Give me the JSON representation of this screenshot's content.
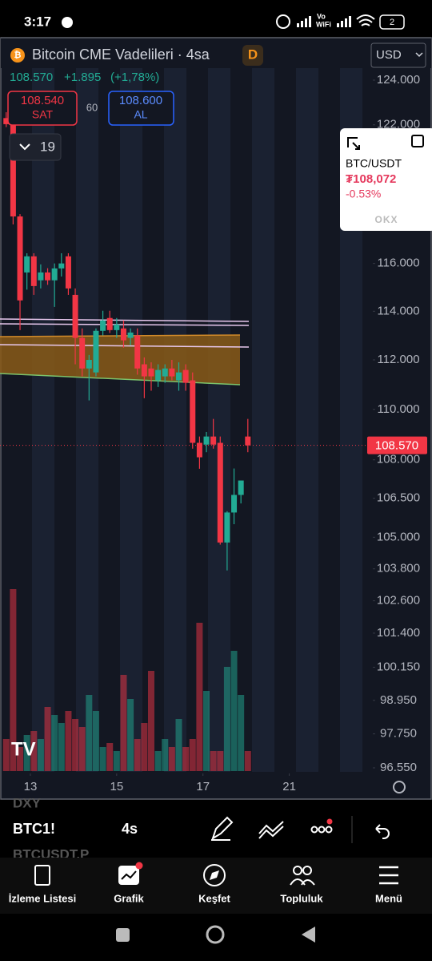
{
  "status_bar": {
    "time": "3:17",
    "vo": "Vo",
    "wifi": "WiFi",
    "battery": "2"
  },
  "header": {
    "title": "Bitcoin CME Vadelileri · 4sa",
    "badge": "D",
    "currency": "USD",
    "price": "108.570",
    "change": "+1.895",
    "change_pct": "(+1,78%)",
    "sell_price": "108.540",
    "sell_label": "SAT",
    "spread": "60",
    "buy_price": "108.600",
    "buy_label": "AL",
    "indicators_count": "19"
  },
  "popup": {
    "symbol": "BTC/USDT",
    "price": "₮108,072",
    "change": "-0.53%",
    "exchange": "OKX"
  },
  "chart_data": {
    "type": "candlestick",
    "yscale": "log",
    "open": [
      122300,
      122280,
      118000,
      115620,
      116300,
      115290,
      115620,
      115290,
      115790,
      116300,
      114680,
      112900,
      111650,
      111490,
      113190,
      113720,
      113220,
      113290,
      112900,
      113000,
      111820,
      111650,
      111170,
      111330,
      111650,
      111170,
      111590,
      111170,
      108670,
      108600,
      108920,
      108670,
      104800,
      105950,
      106630,
      108920
    ],
    "high": [
      122560,
      122560,
      118100,
      116430,
      116430,
      115960,
      115800,
      116000,
      116430,
      116430,
      114950,
      113290,
      112200,
      113290,
      114020,
      114020,
      113720,
      113620,
      113290,
      113290,
      112100,
      111900,
      111820,
      111820,
      112000,
      111900,
      111820,
      111490,
      108920,
      109100,
      109620,
      108920,
      106000,
      107660,
      107190,
      109620
    ],
    "low": [
      121900,
      117660,
      113220,
      114900,
      114680,
      114950,
      115100,
      114180,
      115450,
      114680,
      111820,
      111330,
      110360,
      111330,
      113000,
      113100,
      112900,
      112500,
      112600,
      111400,
      110450,
      110750,
      110900,
      111070,
      111170,
      110750,
      110750,
      108440,
      107650,
      108300,
      108440,
      104720,
      103740,
      105500,
      106300,
      108300
    ],
    "close": [
      122030,
      118000,
      114450,
      116300,
      115050,
      115620,
      115290,
      115790,
      116000,
      114950,
      112900,
      111650,
      112000,
      113190,
      113620,
      113220,
      113450,
      112800,
      113120,
      111650,
      111330,
      111330,
      111590,
      111650,
      111330,
      111490,
      111070,
      108670,
      108100,
      108920,
      108600,
      104800,
      105950,
      106630,
      107190,
      108570
    ],
    "volume": [
      40,
      227,
      30,
      45,
      50,
      40,
      80,
      70,
      60,
      75,
      65,
      55,
      95,
      75,
      30,
      35,
      25,
      120,
      90,
      40,
      60,
      125,
      25,
      40,
      30,
      65,
      30,
      40,
      185,
      100,
      25,
      25,
      130,
      150,
      95,
      25
    ],
    "vlim": [
      0,
      250
    ],
    "ylim": [
      96550,
      124000
    ],
    "yticks": [
      {
        "value": 124000,
        "label": "124.000"
      },
      {
        "value": 122000,
        "label": "122.000"
      },
      {
        "value": 116000,
        "label": "116.000"
      },
      {
        "value": 114000,
        "label": "114.000"
      },
      {
        "value": 112000,
        "label": "112.000"
      },
      {
        "value": 110000,
        "label": "110.000"
      },
      {
        "value": 108000,
        "label": "108.000"
      },
      {
        "value": 106500,
        "label": "106.500"
      },
      {
        "value": 105000,
        "label": "105.000"
      },
      {
        "value": 103800,
        "label": "103.800"
      },
      {
        "value": 102600,
        "label": "102.600"
      },
      {
        "value": 101400,
        "label": "101.400"
      },
      {
        "value": 100150,
        "label": "100.150"
      },
      {
        "value": 98950,
        "label": "98.950"
      },
      {
        "value": 97750,
        "label": "97.750"
      },
      {
        "value": 96550,
        "label": "96.550"
      }
    ],
    "xlim": [
      -0.9,
      53.1
    ],
    "xticks": [
      {
        "value": 3.5,
        "label": "13"
      },
      {
        "value": 16,
        "label": "15"
      },
      {
        "value": 28.5,
        "label": "17"
      },
      {
        "value": 41,
        "label": "21"
      }
    ],
    "up_color": "#22ab94",
    "down_color": "#f23645",
    "last_price": {
      "value": 108570,
      "label": "108.570"
    }
  },
  "toolbar": {
    "prev_symbol": "DXY",
    "symbol": "BTC1!",
    "interval": "4s",
    "next_symbol": "BTCUSDT.P"
  },
  "nav": {
    "items": [
      "İzleme Listesi",
      "Grafik",
      "Keşfet",
      "Topluluk",
      "Menü"
    ]
  }
}
